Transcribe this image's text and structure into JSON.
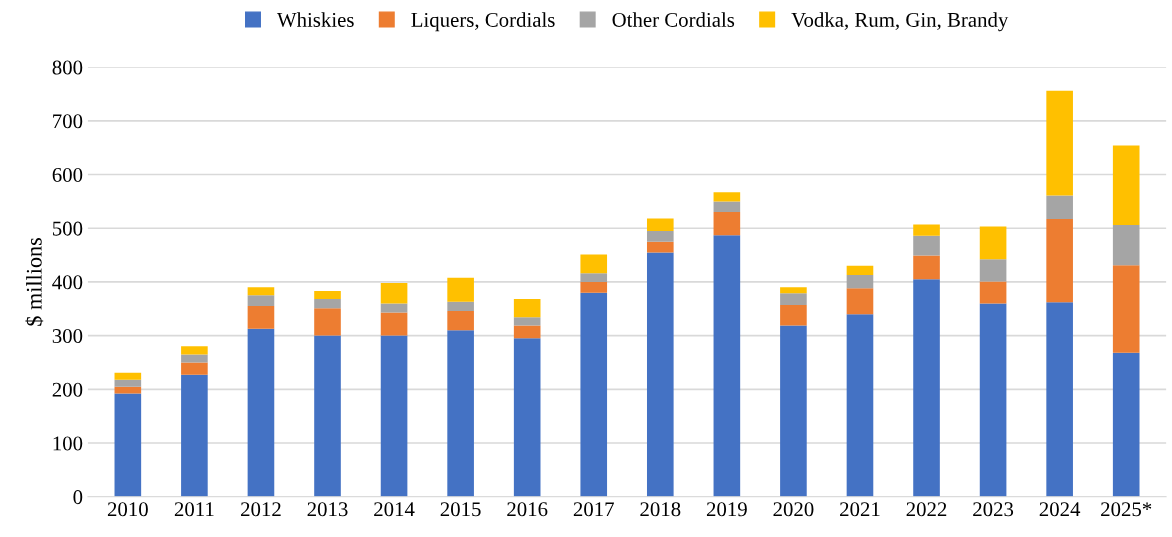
{
  "chart_data": {
    "type": "bar",
    "stacked": true,
    "ylabel": "$ millions",
    "categories": [
      "2010",
      "2011",
      "2012",
      "2013",
      "2014",
      "2015",
      "2016",
      "2017",
      "2018",
      "2019",
      "2020",
      "2021",
      "2022",
      "2023",
      "2024",
      "2025*"
    ],
    "series": [
      {
        "name": "Whiskies",
        "color": "#4472c4",
        "values": [
          192,
          227,
          313,
          300,
          300,
          310,
          295,
          380,
          455,
          487,
          319,
          340,
          405,
          360,
          362,
          268
        ]
      },
      {
        "name": "Liquers, Cordials",
        "color": "#ed7d31",
        "values": [
          13,
          23,
          42,
          51,
          43,
          36,
          24,
          20,
          20,
          43,
          38,
          48,
          44,
          41,
          155,
          163
        ]
      },
      {
        "name": "Other Cordials",
        "color": "#a5a5a5",
        "values": [
          13,
          15,
          20,
          17,
          17,
          17,
          15,
          16,
          20,
          20,
          22,
          25,
          37,
          41,
          44,
          75
        ]
      },
      {
        "name": "Vodka, Rum, Gin, Brandy",
        "color": "#ffc000",
        "values": [
          13,
          15,
          15,
          15,
          38,
          45,
          34,
          35,
          23,
          17,
          11,
          17,
          21,
          61,
          195,
          148
        ]
      }
    ],
    "ylim": [
      0,
      800
    ],
    "yticks": [
      0,
      100,
      200,
      300,
      400,
      500,
      600,
      700,
      800
    ],
    "grid": "y",
    "legend": "top"
  }
}
